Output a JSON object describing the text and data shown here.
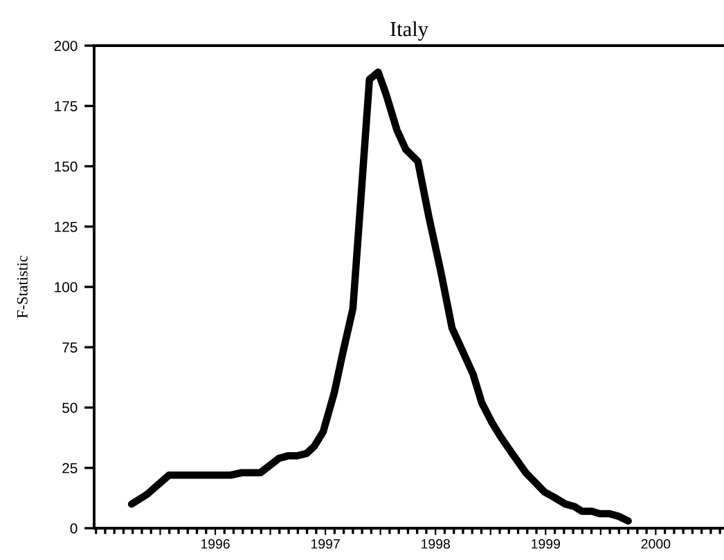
{
  "chart_data": {
    "type": "line",
    "title": "Italy",
    "ylabel": "F-Statistic",
    "x": [
      1995.74,
      1995.81,
      1995.88,
      1996.08,
      1996.64,
      1996.74,
      1996.91,
      1997.08,
      1997.16,
      1997.24,
      1997.33,
      1997.4,
      1997.48,
      1997.58,
      1997.66,
      1997.75,
      1997.82,
      1997.9,
      1997.98,
      1998.05,
      1998.15,
      1998.23,
      1998.34,
      1998.44,
      1998.55,
      1998.65,
      1998.74,
      1998.84,
      1998.92,
      1999.01,
      1999.09,
      1999.18,
      1999.32,
      1999.49,
      1999.57,
      1999.68,
      1999.76,
      1999.83,
      1999.92,
      1999.99,
      2000.08,
      2000.16,
      2000.25
    ],
    "series": [
      {
        "color": "#000000",
        "values": [
          10,
          12,
          14,
          22,
          22,
          23,
          23,
          29,
          30,
          30,
          31,
          34,
          40,
          56,
          73,
          91,
          135,
          186,
          189,
          180,
          165,
          157,
          152,
          129,
          106,
          83,
          74,
          64,
          52,
          44,
          38,
          32,
          23,
          15,
          13,
          10,
          9,
          7,
          7,
          6,
          6,
          5,
          3
        ]
      }
    ],
    "xlim": [
      1995.4,
      2001.12
    ],
    "xticks": [
      {
        "value": 1996,
        "label": null
      },
      {
        "value": 1996.5,
        "label": "1996"
      },
      {
        "value": 1997,
        "label": null
      },
      {
        "value": 1997.5,
        "label": "1997"
      },
      {
        "value": 1998,
        "label": null
      },
      {
        "value": 1998.5,
        "label": "1998"
      },
      {
        "value": 1999,
        "label": null
      },
      {
        "value": 1999.5,
        "label": "1999"
      },
      {
        "value": 2000,
        "label": null
      },
      {
        "value": 2000.5,
        "label": "2000"
      }
    ],
    "ylim": [
      0,
      200
    ],
    "yticks": [
      0,
      25,
      50,
      75,
      100,
      125,
      150,
      175,
      200
    ],
    "grid": false,
    "marker": "none",
    "line_style": "solid"
  }
}
